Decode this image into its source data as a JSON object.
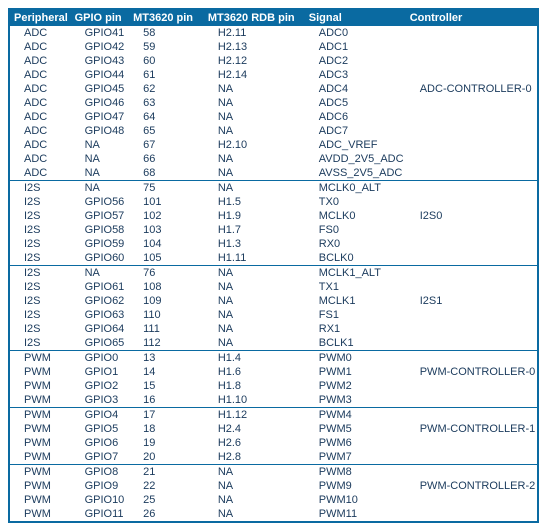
{
  "columns": [
    "Peripheral",
    "GPIO pin",
    "MT3620 pin",
    "MT3620 RDB pin",
    "Signal",
    "Controller"
  ],
  "colors": {
    "header_bg": "#0a6aa1",
    "header_text": "#ffffff",
    "border": "#0a6aa1",
    "cell_text": "#1a3a5c"
  },
  "groups": [
    {
      "rows": [
        [
          "ADC",
          "GPIO41",
          "58",
          "H2.11",
          "ADC0",
          ""
        ],
        [
          "ADC",
          "GPIO42",
          "59",
          "H2.13",
          "ADC1",
          ""
        ],
        [
          "ADC",
          "GPIO43",
          "60",
          "H2.12",
          "ADC2",
          ""
        ],
        [
          "ADC",
          "GPIO44",
          "61",
          "H2.14",
          "ADC3",
          ""
        ],
        [
          "ADC",
          "GPIO45",
          "62",
          "NA",
          "ADC4",
          "ADC-CONTROLLER-0"
        ],
        [
          "ADC",
          "GPIO46",
          "63",
          "NA",
          "ADC5",
          ""
        ],
        [
          "ADC",
          "GPIO47",
          "64",
          "NA",
          "ADC6",
          ""
        ],
        [
          "ADC",
          "GPIO48",
          "65",
          "NA",
          "ADC7",
          ""
        ],
        [
          "ADC",
          "NA",
          "67",
          "H2.10",
          "ADC_VREF",
          ""
        ],
        [
          "ADC",
          "NA",
          "66",
          "NA",
          "AVDD_2V5_ADC",
          ""
        ],
        [
          "ADC",
          "NA",
          "68",
          "NA",
          "AVSS_2V5_ADC",
          ""
        ]
      ]
    },
    {
      "rows": [
        [
          "I2S",
          "NA",
          "75",
          "NA",
          "MCLK0_ALT",
          ""
        ],
        [
          "I2S",
          "GPIO56",
          "101",
          "H1.5",
          "TX0",
          ""
        ],
        [
          "I2S",
          "GPIO57",
          "102",
          "H1.9",
          "MCLK0",
          "I2S0"
        ],
        [
          "I2S",
          "GPIO58",
          "103",
          "H1.7",
          "FS0",
          ""
        ],
        [
          "I2S",
          "GPIO59",
          "104",
          "H1.3",
          "RX0",
          ""
        ],
        [
          "I2S",
          "GPIO60",
          "105",
          "H1.11",
          "BCLK0",
          ""
        ]
      ]
    },
    {
      "rows": [
        [
          "I2S",
          "NA",
          "76",
          "NA",
          "MCLK1_ALT",
          ""
        ],
        [
          "I2S",
          "GPIO61",
          "108",
          "NA",
          "TX1",
          ""
        ],
        [
          "I2S",
          "GPIO62",
          "109",
          "NA",
          "MCLK1",
          "I2S1"
        ],
        [
          "I2S",
          "GPIO63",
          "110",
          "NA",
          "FS1",
          ""
        ],
        [
          "I2S",
          "GPIO64",
          "111",
          "NA",
          "RX1",
          ""
        ],
        [
          "I2S",
          "GPIO65",
          "112",
          "NA",
          "BCLK1",
          ""
        ]
      ]
    },
    {
      "rows": [
        [
          "PWM",
          "GPIO0",
          "13",
          "H1.4",
          "PWM0",
          ""
        ],
        [
          "PWM",
          "GPIO1",
          "14",
          "H1.6",
          "PWM1",
          "PWM-CONTROLLER-0"
        ],
        [
          "PWM",
          "GPIO2",
          "15",
          "H1.8",
          "PWM2",
          ""
        ],
        [
          "PWM",
          "GPIO3",
          "16",
          "H1.10",
          "PWM3",
          ""
        ]
      ]
    },
    {
      "rows": [
        [
          "PWM",
          "GPIO4",
          "17",
          "H1.12",
          "PWM4",
          ""
        ],
        [
          "PWM",
          "GPIO5",
          "18",
          "H2.4",
          "PWM5",
          "PWM-CONTROLLER-1"
        ],
        [
          "PWM",
          "GPIO6",
          "19",
          "H2.6",
          "PWM6",
          ""
        ],
        [
          "PWM",
          "GPIO7",
          "20",
          "H2.8",
          "PWM7",
          ""
        ]
      ]
    },
    {
      "rows": [
        [
          "PWM",
          "GPIO8",
          "21",
          "NA",
          "PWM8",
          ""
        ],
        [
          "PWM",
          "GPIO9",
          "22",
          "NA",
          "PWM9",
          "PWM-CONTROLLER-2"
        ],
        [
          "PWM",
          "GPIO10",
          "25",
          "NA",
          "PWM10",
          ""
        ],
        [
          "PWM",
          "GPIO11",
          "26",
          "NA",
          "PWM11",
          ""
        ]
      ]
    }
  ]
}
